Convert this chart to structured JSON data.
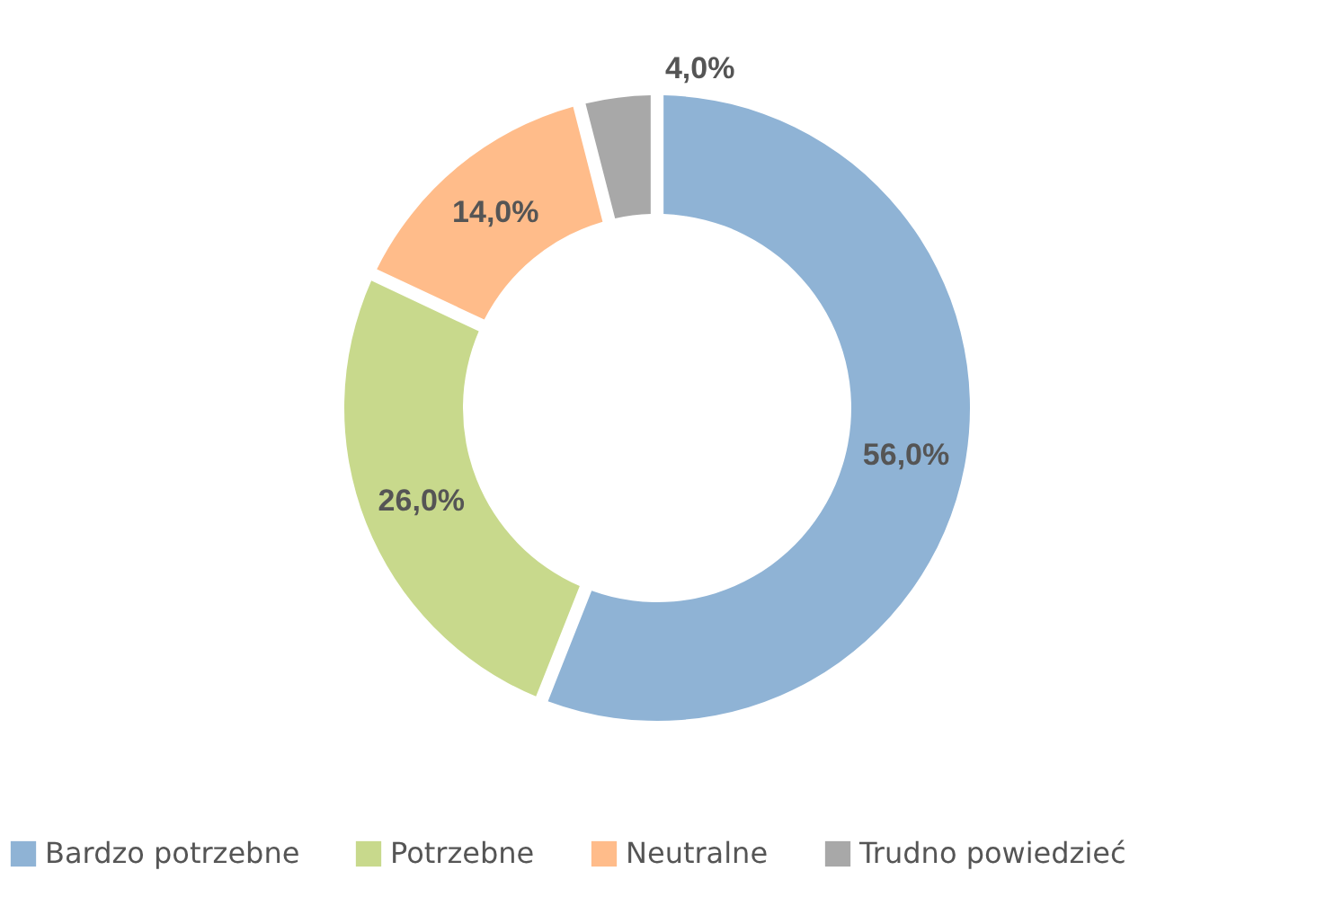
{
  "chart_data": {
    "type": "donut",
    "categories": [
      "Bardzo potrzebne",
      "Potrzebne",
      "Neutralne",
      "Trudno powiedzieć"
    ],
    "values": [
      56,
      26,
      14,
      4
    ],
    "colors": [
      "#8fb3d5",
      "#c8d98c",
      "#ffbc8a",
      "#a8a8a8"
    ],
    "value_labels": [
      "56,0%",
      "26,0%",
      "14,0%",
      "4,0%"
    ],
    "legend": "bottom"
  }
}
